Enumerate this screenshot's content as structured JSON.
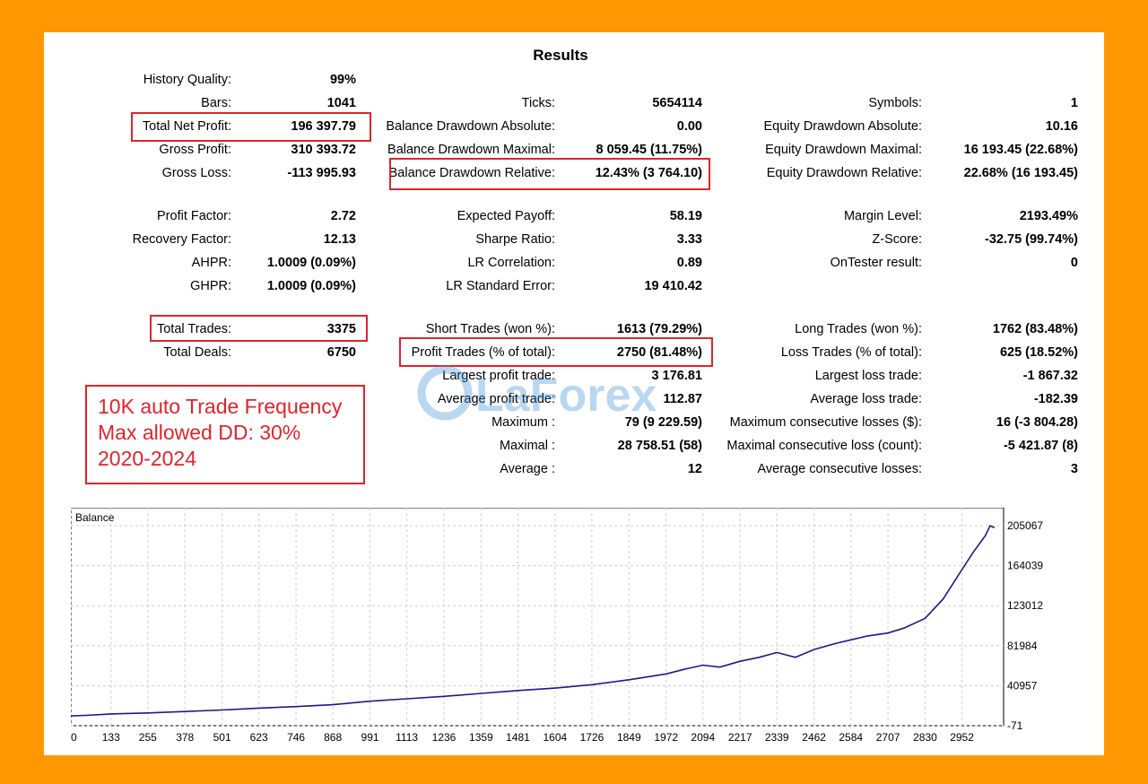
{
  "title": "Results",
  "col1": [
    {
      "key": "history_quality",
      "label": "History Quality:",
      "value": "99%",
      "y": 89
    },
    {
      "key": "bars",
      "label": "Bars:",
      "value": "1041",
      "y": 115
    },
    {
      "key": "total_net_profit",
      "label": "Total Net Profit:",
      "value": "196 397.79",
      "y": 141
    },
    {
      "key": "gross_profit",
      "label": "Gross Profit:",
      "value": "310 393.72",
      "y": 167
    },
    {
      "key": "gross_loss",
      "label": "Gross Loss:",
      "value": "-113 995.93",
      "y": 193
    },
    {
      "key": "profit_factor",
      "label": "Profit Factor:",
      "value": "2.72",
      "y": 241
    },
    {
      "key": "recovery_factor",
      "label": "Recovery Factor:",
      "value": "12.13",
      "y": 267
    },
    {
      "key": "ahpr",
      "label": "AHPR:",
      "value": "1.0009 (0.09%)",
      "y": 293
    },
    {
      "key": "ghpr",
      "label": "GHPR:",
      "value": "1.0009 (0.09%)",
      "y": 319
    },
    {
      "key": "total_trades",
      "label": "Total Trades:",
      "value": "3375",
      "y": 367
    },
    {
      "key": "total_deals",
      "label": "Total Deals:",
      "value": "6750",
      "y": 393
    }
  ],
  "col2": [
    {
      "key": "ticks",
      "label": "Ticks:",
      "value": "5654114",
      "y": 115
    },
    {
      "key": "balance_dd_abs",
      "label": "Balance Drawdown Absolute:",
      "value": "0.00",
      "y": 141
    },
    {
      "key": "balance_dd_max",
      "label": "Balance Drawdown Maximal:",
      "value": "8 059.45 (11.75%)",
      "y": 167
    },
    {
      "key": "balance_dd_rel",
      "label": "Balance Drawdown Relative:",
      "value": "12.43% (3 764.10)",
      "y": 193
    },
    {
      "key": "expected_payoff",
      "label": "Expected Payoff:",
      "value": "58.19",
      "y": 241
    },
    {
      "key": "sharpe",
      "label": "Sharpe Ratio:",
      "value": "3.33",
      "y": 267
    },
    {
      "key": "lr_corr",
      "label": "LR Correlation:",
      "value": "0.89",
      "y": 293
    },
    {
      "key": "lr_err",
      "label": "LR Standard Error:",
      "value": "19 410.42",
      "y": 319
    },
    {
      "key": "short_trades",
      "label": "Short Trades (won %):",
      "value": "1613 (79.29%)",
      "y": 367
    },
    {
      "key": "profit_trades",
      "label": "Profit Trades (% of total):",
      "value": "2750 (81.48%)",
      "y": 393
    },
    {
      "key": "largest_profit",
      "label": "Largest profit trade:",
      "value": "3 176.81",
      "y": 419
    },
    {
      "key": "avg_profit",
      "label": "Average profit trade:",
      "value": "112.87",
      "y": 445
    },
    {
      "key": "maximum",
      "label": "Maximum :",
      "value": "79 (9 229.59)",
      "y": 471
    },
    {
      "key": "maximal",
      "label": "Maximal :",
      "value": "28 758.51 (58)",
      "y": 497
    },
    {
      "key": "average",
      "label": "Average :",
      "value": "12",
      "y": 523
    }
  ],
  "col3": [
    {
      "key": "symbols",
      "label": "Symbols:",
      "value": "1",
      "y": 115
    },
    {
      "key": "equity_dd_abs",
      "label": "Equity Drawdown Absolute:",
      "value": "10.16",
      "y": 141
    },
    {
      "key": "equity_dd_max",
      "label": "Equity Drawdown Maximal:",
      "value": "16 193.45 (22.68%)",
      "y": 167
    },
    {
      "key": "equity_dd_rel",
      "label": "Equity Drawdown Relative:",
      "value": "22.68% (16 193.45)",
      "y": 193
    },
    {
      "key": "margin_level",
      "label": "Margin Level:",
      "value": "2193.49%",
      "y": 241
    },
    {
      "key": "z_score",
      "label": "Z-Score:",
      "value": "-32.75 (99.74%)",
      "y": 267
    },
    {
      "key": "ontester",
      "label": "OnTester result:",
      "value": "0",
      "y": 293
    },
    {
      "key": "long_trades",
      "label": "Long Trades (won %):",
      "value": "1762 (83.48%)",
      "y": 367
    },
    {
      "key": "loss_trades",
      "label": "Loss Trades (% of total):",
      "value": "625 (18.52%)",
      "y": 393
    },
    {
      "key": "largest_loss",
      "label": "Largest loss trade:",
      "value": "-1 867.32",
      "y": 419
    },
    {
      "key": "avg_loss",
      "label": "Average loss trade:",
      "value": "-182.39",
      "y": 445
    },
    {
      "key": "max_consec_losses_money",
      "label": "Maximum consecutive losses ($):",
      "value": "16 (-3 804.28)",
      "y": 471
    },
    {
      "key": "maximal_consec_loss_count",
      "label": "Maximal consecutive loss (count):",
      "value": "-5 421.87 (8)",
      "y": 497
    },
    {
      "key": "avg_consec_losses",
      "label": "Average consecutive losses:",
      "value": "3",
      "y": 523
    }
  ],
  "note": {
    "line1": "10K auto Trade Frequency",
    "line2": "Max allowed DD: 30%",
    "line3": "2020-2024"
  },
  "watermark": "LaForex",
  "colors": {
    "background": "#ff9800",
    "highlight": "#e0242b",
    "balance_line": "#1a1a8c",
    "grid": "#cfcfcf"
  },
  "chart_data": {
    "type": "line",
    "title": "Balance",
    "xlabel": "",
    "ylabel": "",
    "x_ticks": [
      "0",
      "133",
      "255",
      "378",
      "501",
      "623",
      "746",
      "868",
      "991",
      "1113",
      "1236",
      "1359",
      "1481",
      "1604",
      "1726",
      "1849",
      "1972",
      "2094",
      "2217",
      "2339",
      "2462",
      "2584",
      "2707",
      "2830",
      "2952"
    ],
    "y_ticks": [
      "205067",
      "164039",
      "123012",
      "81984",
      "40957",
      "-71"
    ],
    "xlim": [
      0,
      3090
    ],
    "ylim": [
      -71,
      205067
    ],
    "grid": true,
    "series": [
      {
        "name": "Balance",
        "x": [
          0,
          50,
          133,
          255,
          378,
          501,
          623,
          746,
          868,
          991,
          1113,
          1236,
          1359,
          1481,
          1604,
          1726,
          1849,
          1972,
          2035,
          2094,
          2150,
          2217,
          2280,
          2339,
          2400,
          2462,
          2530,
          2584,
          2640,
          2707,
          2760,
          2830,
          2890,
          2952,
          2990,
          3030,
          3045,
          3060
        ],
        "values": [
          10000,
          10500,
          12000,
          13000,
          14500,
          16000,
          18000,
          19500,
          21500,
          25000,
          27500,
          30000,
          33000,
          36000,
          38500,
          42000,
          47000,
          53000,
          58000,
          62000,
          60000,
          66000,
          70000,
          75000,
          70000,
          78000,
          84000,
          88000,
          92000,
          95000,
          100000,
          110000,
          130000,
          160000,
          178000,
          195000,
          205000,
          203000
        ]
      }
    ]
  }
}
